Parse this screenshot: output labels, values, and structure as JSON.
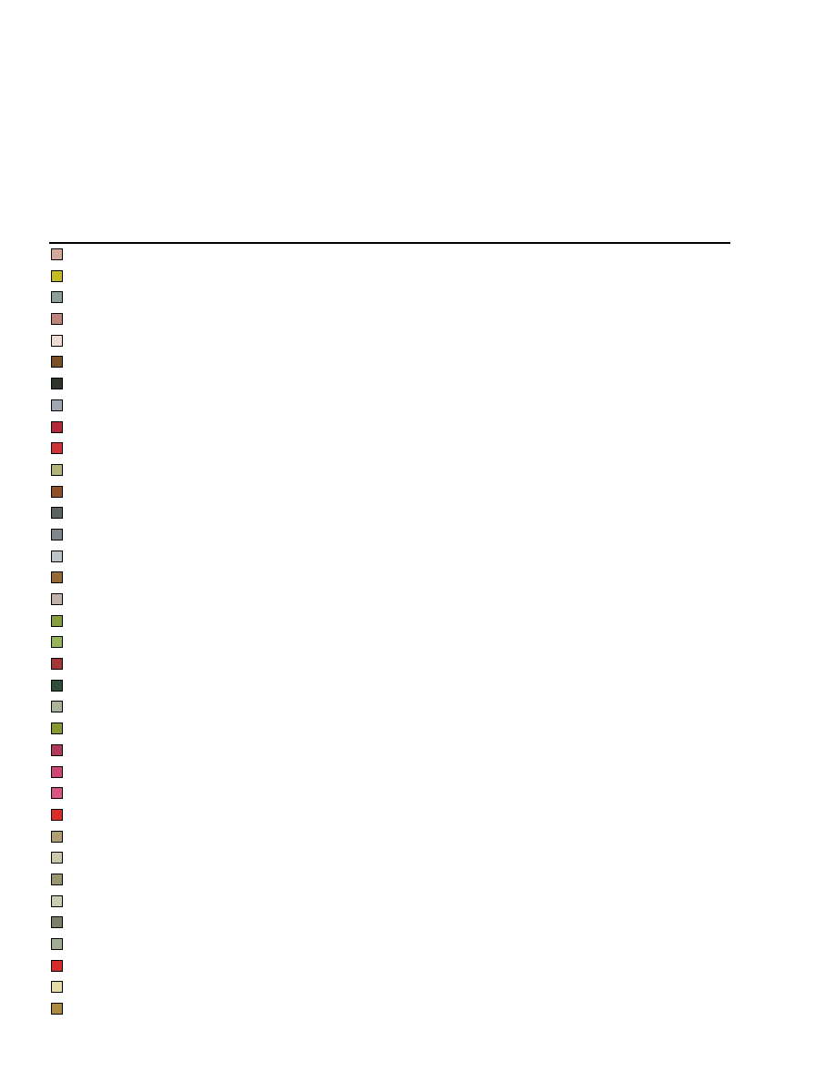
{
  "legend": {
    "swatch_colors": [
      "#d4a89a",
      "#c4bc22",
      "#8e9e98",
      "#c0857a",
      "#f0dcd4",
      "#7a5028",
      "#2e3428",
      "#a0a8b2",
      "#b4283a",
      "#cc3438",
      "#b4b47a",
      "#8e5226",
      "#5a6460",
      "#80868e",
      "#bcc4c8",
      "#966a36",
      "#c0b2aa",
      "#86a03e",
      "#98b45a",
      "#a43638",
      "#2e4c38",
      "#aab49a",
      "#869a32",
      "#b43a5c",
      "#cc4872",
      "#d85686",
      "#dc2c28",
      "#ae9e72",
      "#ccc8aa",
      "#9a9670",
      "#ccccb0",
      "#7a806a",
      "#a2ac94",
      "#d42c2c",
      "#e4dca4",
      "#ac8c3c"
    ]
  }
}
